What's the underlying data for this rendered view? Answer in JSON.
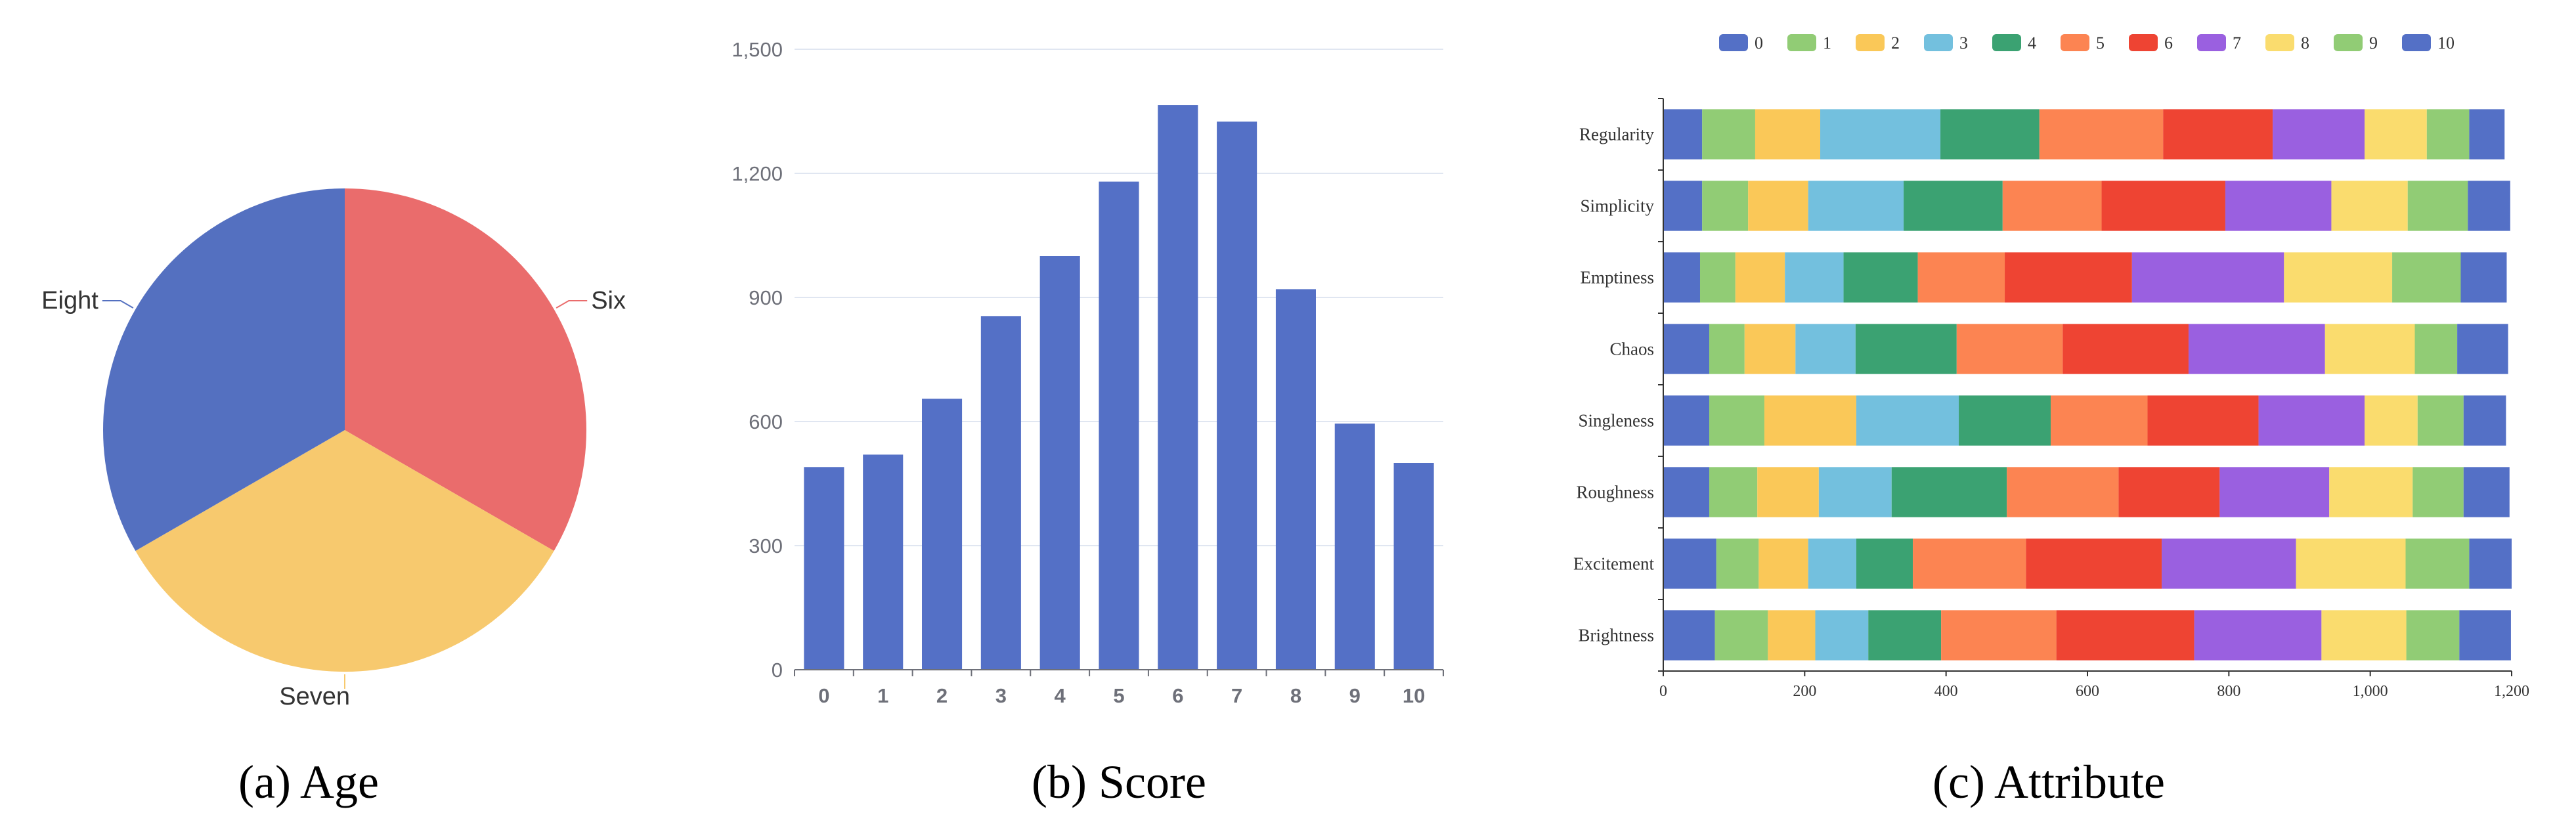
{
  "colors": [
    "#5470c6",
    "#91cc75",
    "#fac858",
    "#73c0de",
    "#3ba272",
    "#fc8452",
    "#ee4433",
    "#9a60e0",
    "#fadc6e",
    "#91cc75",
    "#5470c6"
  ],
  "chart_data": [
    {
      "type": "pie",
      "caption": "(a) Age",
      "slices": [
        {
          "label": "Six",
          "value": 1,
          "color": "#ea6c6c"
        },
        {
          "label": "Seven",
          "value": 1,
          "color": "#f7c96e"
        },
        {
          "label": "Eight",
          "value": 1,
          "color": "#5470c0"
        }
      ]
    },
    {
      "type": "bar",
      "caption": "(b) Score",
      "categories": [
        "0",
        "1",
        "2",
        "3",
        "4",
        "5",
        "6",
        "7",
        "8",
        "9",
        "10"
      ],
      "values": [
        490,
        520,
        655,
        855,
        1000,
        1180,
        1365,
        1325,
        920,
        595,
        500
      ],
      "ylim": [
        0,
        1500
      ],
      "yticks": [
        0,
        300,
        600,
        900,
        1200,
        1500
      ],
      "ytick_labels": [
        "0",
        "300",
        "600",
        "900",
        "1,200",
        "1,500"
      ],
      "grid": true,
      "color": "#5470c6"
    },
    {
      "type": "bar",
      "orientation": "horizontal",
      "stacked": true,
      "caption": "(c) Attribute",
      "categories": [
        "Regularity",
        "Simplicity",
        "Emptiness",
        "Chaos",
        "Singleness",
        "Roughness",
        "Excitement",
        "Brightness"
      ],
      "legend": [
        "0",
        "1",
        "2",
        "3",
        "4",
        "5",
        "6",
        "7",
        "8",
        "9",
        "10"
      ],
      "legend_position": "top",
      "xlim": [
        0,
        1200
      ],
      "xticks": [
        0,
        200,
        400,
        600,
        800,
        1000,
        1200
      ],
      "xtick_labels": [
        "0",
        "200",
        "400",
        "600",
        "800",
        "1,000",
        "1,200"
      ],
      "series": [
        {
          "name": "0",
          "values": [
            55,
            55,
            52,
            65,
            65,
            65,
            75,
            73
          ]
        },
        {
          "name": "1",
          "values": [
            75,
            65,
            50,
            50,
            78,
            68,
            60,
            75
          ]
        },
        {
          "name": "2",
          "values": [
            92,
            85,
            70,
            72,
            130,
            87,
            70,
            67
          ]
        },
        {
          "name": "3",
          "values": [
            170,
            135,
            83,
            85,
            145,
            103,
            68,
            75
          ]
        },
        {
          "name": "4",
          "values": [
            140,
            140,
            105,
            143,
            130,
            163,
            80,
            103
          ]
        },
        {
          "name": "5",
          "values": [
            175,
            140,
            123,
            150,
            137,
            158,
            160,
            163
          ]
        },
        {
          "name": "6",
          "values": [
            155,
            175,
            180,
            178,
            157,
            143,
            192,
            195
          ]
        },
        {
          "name": "7",
          "values": [
            130,
            150,
            215,
            193,
            150,
            155,
            190,
            180
          ]
        },
        {
          "name": "8",
          "values": [
            88,
            108,
            153,
            127,
            75,
            118,
            155,
            120
          ]
        },
        {
          "name": "9",
          "values": [
            60,
            85,
            97,
            60,
            65,
            72,
            90,
            75
          ]
        },
        {
          "name": "10",
          "values": [
            50,
            60,
            65,
            72,
            60,
            65,
            60,
            73
          ]
        }
      ]
    }
  ]
}
